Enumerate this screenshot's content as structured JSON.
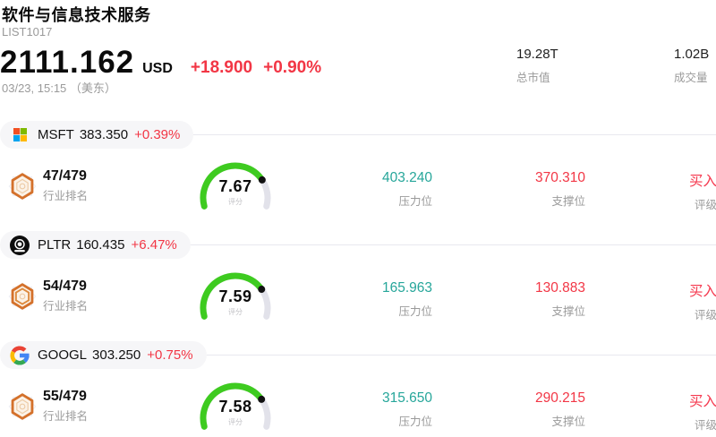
{
  "header": {
    "title": "软件与信息技术服务",
    "subtitle": "LIST1017",
    "price": "2111.162",
    "currency": "USD",
    "change_amount": "+18.900",
    "change_percent": "+0.90%",
    "timestamp": "03/23, 15:15 （美东）",
    "market_cap": {
      "value": "19.28T",
      "label": "总市值"
    },
    "volume": {
      "value": "1.02B",
      "label": "成交量"
    }
  },
  "colors": {
    "up_down_red": "#f23645",
    "resistance_teal": "#26a69a",
    "gauge_green": "#3ecb20",
    "gauge_track": "#e2e2ea",
    "gauge_dot": "#111111",
    "badge_orange": "#d4712b",
    "pill_bg": "#f6f6f8"
  },
  "icons": {
    "msft": "microsoft-logo",
    "pltr": "palantir-logo",
    "googl": "google-logo",
    "rank": "rank-badge-shield"
  },
  "stocks": [
    {
      "ticker": "MSFT",
      "price": "383.350",
      "change": "+0.39%",
      "rank": "47/479",
      "rank_label": "行业排名",
      "score": 7.67,
      "score_label": "评分",
      "resistance": {
        "value": "403.240",
        "label": "压力位"
      },
      "support": {
        "value": "370.310",
        "label": "支撑位"
      },
      "rating": {
        "value": "买入",
        "label": "评级"
      }
    },
    {
      "ticker": "PLTR",
      "price": "160.435",
      "change": "+6.47%",
      "rank": "54/479",
      "rank_label": "行业排名",
      "score": 7.59,
      "score_label": "评分",
      "resistance": {
        "value": "165.963",
        "label": "压力位"
      },
      "support": {
        "value": "130.883",
        "label": "支撑位"
      },
      "rating": {
        "value": "买入",
        "label": "评级"
      }
    },
    {
      "ticker": "GOOGL",
      "price": "303.250",
      "change": "+0.75%",
      "rank": "55/479",
      "rank_label": "行业排名",
      "score": 7.58,
      "score_label": "评分",
      "resistance": {
        "value": "315.650",
        "label": "压力位"
      },
      "support": {
        "value": "290.215",
        "label": "支撑位"
      },
      "rating": {
        "value": "买入",
        "label": "评级"
      }
    }
  ]
}
